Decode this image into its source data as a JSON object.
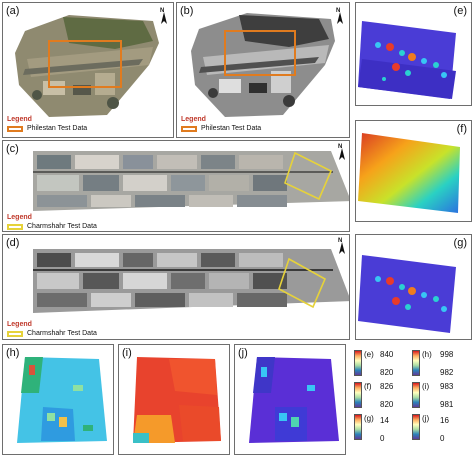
{
  "panels": {
    "a": {
      "label": "(a)",
      "legend_title": "Legend",
      "legend_entry": "Philestan Test Data"
    },
    "b": {
      "label": "(b)",
      "legend_title": "Legend",
      "legend_entry": "Philestan Test Data"
    },
    "c": {
      "label": "(c)",
      "legend_title": "Legend",
      "legend_entry": "Charmshahr Test Data"
    },
    "d": {
      "label": "(d)",
      "legend_title": "Legend",
      "legend_entry": "Charmshahr Test Data"
    },
    "e": {
      "label": "(e)"
    },
    "f": {
      "label": "(f)"
    },
    "g": {
      "label": "(g)"
    },
    "h": {
      "label": "(h)"
    },
    "i": {
      "label": "(i)"
    },
    "j": {
      "label": "(j)"
    }
  },
  "north_symbol": "N",
  "colorbars": {
    "e": {
      "label": "(e)",
      "max": "840",
      "min": "820"
    },
    "f": {
      "label": "(f)",
      "max": "826",
      "min": "820"
    },
    "g": {
      "label": "(g)",
      "max": "14",
      "min": "0"
    },
    "h": {
      "label": "(h)",
      "max": "998",
      "min": "982"
    },
    "i": {
      "label": "(i)",
      "max": "983",
      "min": "981"
    },
    "j": {
      "label": "(j)",
      "max": "16",
      "min": "0"
    }
  },
  "colors": {
    "philestan_box": "#e07b1f",
    "charmshahr_box": "#e6d23a",
    "legend_title": "#c0392b"
  }
}
